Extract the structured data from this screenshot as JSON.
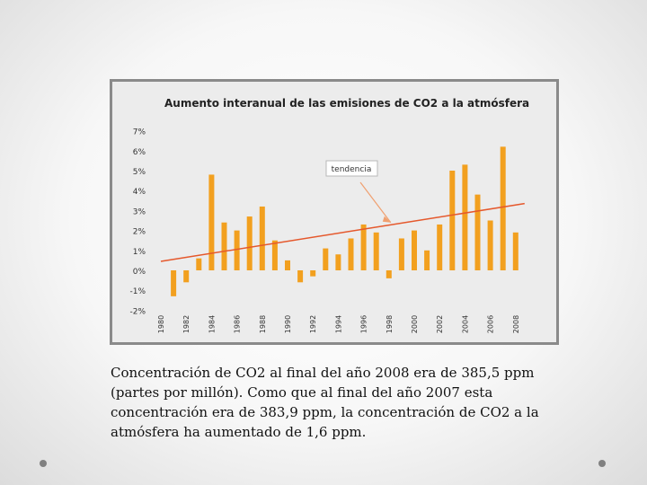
{
  "caption": "Concentración de CO2 al final del año 2008 era de 385,5 ppm (partes por millón). Como que al final del año 2007 esta concentración era de 383,9 ppm, la concentración de CO2 a la atmósfera ha aumentado de 1,6 ppm.",
  "chart_data": {
    "type": "bar",
    "title": "Aumento interanual de las emisiones de CO2 a la atmósfera",
    "xlabel": "",
    "ylabel": "",
    "ylim": [
      -2,
      7
    ],
    "y_ticks": [
      "-2%",
      "-1%",
      "0%",
      "1%",
      "2%",
      "3%",
      "4%",
      "5%",
      "6%",
      "7%"
    ],
    "y_tick_values": [
      -2,
      -1,
      0,
      1,
      2,
      3,
      4,
      5,
      6,
      7
    ],
    "x_tick_labels": [
      "1980",
      "1982",
      "1984",
      "1986",
      "1988",
      "1990",
      "1992",
      "1994",
      "1996",
      "1998",
      "2000",
      "2002",
      "2004",
      "2006",
      "2008"
    ],
    "categories": [
      "1980",
      "1981",
      "1982",
      "1983",
      "1984",
      "1985",
      "1986",
      "1987",
      "1988",
      "1989",
      "1990",
      "1991",
      "1992",
      "1993",
      "1994",
      "1995",
      "1996",
      "1997",
      "1998",
      "1999",
      "2000",
      "2001",
      "2002",
      "2003",
      "2004",
      "2005",
      "2006",
      "2007",
      "2008"
    ],
    "values": [
      0,
      -1.3,
      -0.6,
      0.6,
      4.8,
      2.4,
      2.0,
      2.7,
      3.2,
      1.5,
      0.5,
      -0.6,
      -0.3,
      1.1,
      0.8,
      1.6,
      2.3,
      1.9,
      -0.4,
      1.6,
      2.0,
      1.0,
      2.3,
      5.0,
      5.3,
      3.8,
      2.5,
      6.2,
      1.9
    ],
    "trendline": {
      "start": [
        1980,
        0.45
      ],
      "end": [
        2008,
        3.35
      ]
    },
    "annotation": {
      "text": "tendencia",
      "points_to": [
        1998,
        2.4
      ]
    },
    "grid": false,
    "colors": {
      "bar": "#f2a01f",
      "trend": "#e5582c",
      "arrow": "#f0a070",
      "frame_border": "#8a8a8a",
      "plot_background": "#ececec"
    }
  }
}
